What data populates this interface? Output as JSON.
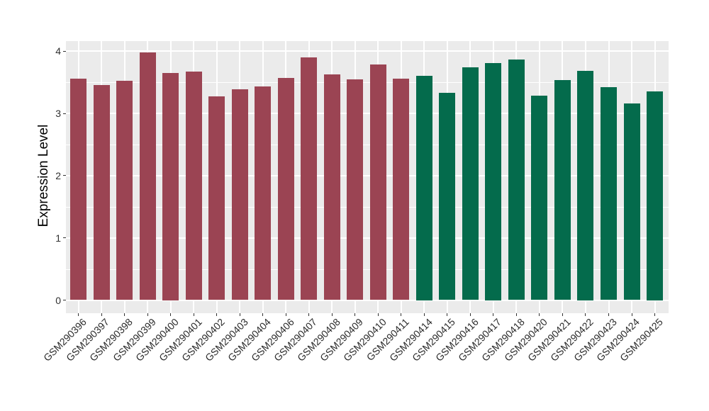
{
  "chart_data": {
    "type": "bar",
    "title": "",
    "xlabel": "",
    "ylabel": "Expression Level",
    "categories": [
      "GSM290396",
      "GSM290397",
      "GSM290398",
      "GSM290399",
      "GSM290400",
      "GSM290401",
      "GSM290402",
      "GSM290403",
      "GSM290404",
      "GSM290406",
      "GSM290407",
      "GSM290408",
      "GSM290409",
      "GSM290410",
      "GSM290411",
      "GSM290414",
      "GSM290415",
      "GSM290416",
      "GSM290417",
      "GSM290418",
      "GSM290420",
      "GSM290421",
      "GSM290422",
      "GSM290423",
      "GSM290424",
      "GSM290425"
    ],
    "values": [
      3.56,
      3.46,
      3.53,
      3.98,
      3.65,
      3.67,
      3.27,
      3.39,
      3.43,
      3.57,
      3.9,
      3.63,
      3.55,
      3.79,
      3.56,
      3.61,
      3.33,
      3.74,
      3.81,
      3.87,
      3.29,
      3.54,
      3.69,
      3.42,
      3.16,
      3.36
    ],
    "groups": [
      {
        "color": "#9B4453",
        "count": 15
      },
      {
        "color": "#046B4C",
        "count": 11
      }
    ],
    "yticks": [
      0,
      1,
      2,
      3,
      4
    ],
    "yticks_minor": [
      0.5,
      1.5,
      2.5,
      3.5
    ],
    "ylim": [
      -0.2,
      4.16
    ],
    "xlabel_angle": 45,
    "grid": "major+minor",
    "legend_position": "none"
  },
  "theme": {
    "panel_background": "#EBEBEB",
    "gridline_color": "#FFFFFF",
    "axis_text_color": "#303030",
    "axis_title_color": "#000000",
    "tick_mark_color": "#333333"
  }
}
